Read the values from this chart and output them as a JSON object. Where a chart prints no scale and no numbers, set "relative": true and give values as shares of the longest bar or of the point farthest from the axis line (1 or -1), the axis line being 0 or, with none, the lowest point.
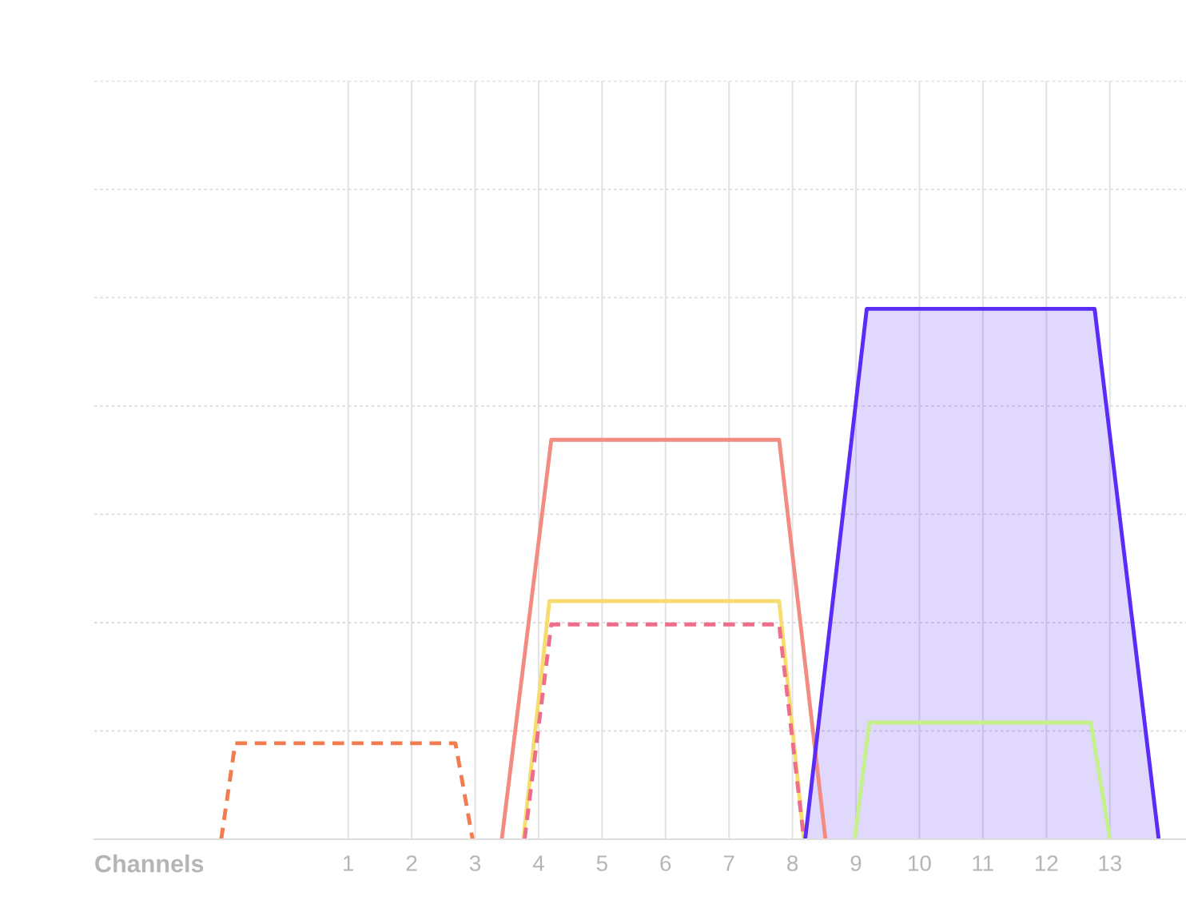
{
  "chart_data": {
    "type": "line",
    "xlabel": "Channels",
    "relative": true,
    "xlim": [
      -3,
      14.2
    ],
    "xticks": [
      1,
      2,
      3,
      4,
      5,
      6,
      7,
      8,
      9,
      10,
      11,
      12,
      13
    ],
    "grid": true,
    "legend": false,
    "marker": "none",
    "series": [
      {
        "color": "#f27b50",
        "line_style": "dashed",
        "x": [
          -1.0,
          -0.78,
          2.69,
          2.96
        ],
        "values": [
          0,
          0.181,
          0.181,
          0
        ]
      },
      {
        "color": "#f28b82",
        "line_style": "solid",
        "x": [
          3.42,
          4.2,
          7.79,
          8.52
        ],
        "values": [
          0,
          0.753,
          0.753,
          0
        ]
      },
      {
        "color": "#f7dc6f",
        "line_style": "solid",
        "x": [
          3.76,
          4.17,
          7.79,
          8.18
        ],
        "values": [
          0,
          0.449,
          0.449,
          0
        ]
      },
      {
        "color": "#ee6d8a",
        "line_style": "dashed",
        "x": [
          3.78,
          4.2,
          7.79,
          8.18
        ],
        "values": [
          0,
          0.405,
          0.405,
          0
        ]
      },
      {
        "type": "area",
        "color": "#5b2cf5",
        "line_style": "solid",
        "x": [
          8.2,
          9.17,
          12.76,
          13.77
        ],
        "values": [
          0,
          1,
          1,
          0
        ]
      },
      {
        "color": "#c6f08a",
        "line_style": "solid",
        "x": [
          8.98,
          9.21,
          12.7,
          13.0
        ],
        "values": [
          0,
          0.22,
          0.22,
          0
        ]
      }
    ]
  }
}
